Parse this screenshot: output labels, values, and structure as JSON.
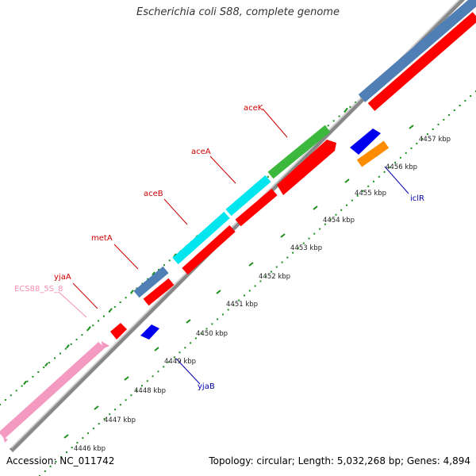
{
  "title": "Escherichia coli S88, complete genome",
  "footer": {
    "accession": "Accession: NC_011742",
    "summary": "Topology: circular; Length: 5,032,268 bp; Genes: 4,894"
  },
  "colors": {
    "pink": "#f49ac1",
    "steelblue": "#4f7fb5",
    "red": "#ff0000",
    "cyan": "#00e5ee",
    "green": "#3cb83c",
    "blue": "#0000ee",
    "orange": "#ff8c00",
    "dotted_track": "#1a8f1a",
    "backbone": "#888888",
    "label_red": "#cc0000",
    "label_pink": "#f48fb1",
    "label_blue": "#0000aa"
  },
  "ticks": [
    {
      "label": "4446 kbp"
    },
    {
      "label": "4447 kbp"
    },
    {
      "label": "4448 kbp"
    },
    {
      "label": "4449 kbp"
    },
    {
      "label": "4450 kbp"
    },
    {
      "label": "4451 kbp"
    },
    {
      "label": "4452 kbp"
    },
    {
      "label": "4453 kbp"
    },
    {
      "label": "4454 kbp"
    },
    {
      "label": "4455 kbp"
    },
    {
      "label": "4456 kbp"
    },
    {
      "label": "4457 kbp"
    }
  ],
  "gene_labels": {
    "aceK": "aceK",
    "aceA": "aceA",
    "aceB": "aceB",
    "metA": "metA",
    "yjaA": "yjaA",
    "ecs88": "ECS88_5S_8",
    "iclR": "iclR",
    "yjaB": "yjaB"
  }
}
